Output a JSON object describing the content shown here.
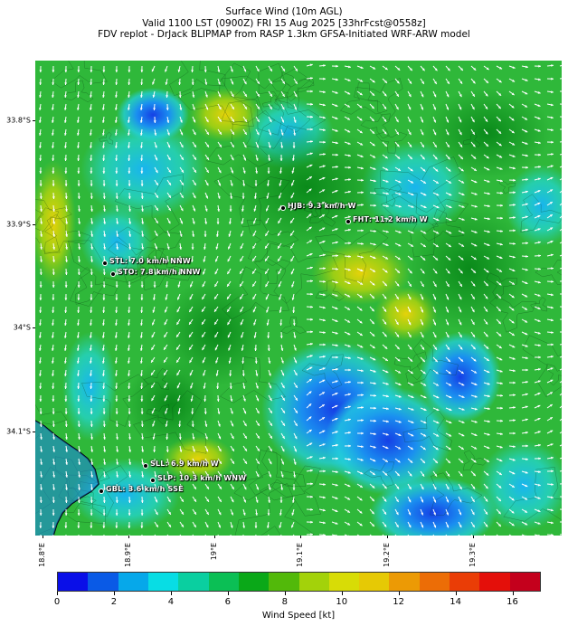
{
  "title": {
    "line1": "Surface Wind (10m AGL)",
    "line2": "Valid 1100 LST (0900Z) FRI 15 Aug 2025 [33hrFcst@0558z]",
    "line3": "FDV replot - DrJack BLIPMAP from RASP 1.3km GFSA-Initiated WRF-ARW model"
  },
  "latitude_labels": [
    "33.8°S",
    "33.9°S",
    "34°S",
    "34.1°S"
  ],
  "longitude_labels": [
    "18.8°E",
    "18.9°E",
    "19°E",
    "19.1°E",
    "19.2°E",
    "19.3°E"
  ],
  "stations": [
    {
      "id": "HJB",
      "label": "HJB: 9.3 km/h W"
    },
    {
      "id": "FHT",
      "label": "FHT: 11.2 km/h W"
    },
    {
      "id": "STL",
      "label": "STL: 7.0 km/h NNW"
    },
    {
      "id": "STO",
      "label": "STO: 7.8 km/h NNW"
    },
    {
      "id": "SLL",
      "label": "SLL: 6.9 km/h W"
    },
    {
      "id": "SLP",
      "label": "SLP: 10.3 km/h WNW"
    },
    {
      "id": "GBL",
      "label": "GBL: 3.6 km/h SSE"
    }
  ],
  "colorbar": {
    "title": "Wind Speed [kt]",
    "tick_labels": [
      "0",
      "2",
      "4",
      "6",
      "8",
      "10",
      "12",
      "14",
      "16"
    ],
    "colors": [
      "#0a0fe8",
      "#0a5ae6",
      "#06a8ea",
      "#08dde4",
      "#0acfa0",
      "#0bbf55",
      "#0aa818",
      "#52b90a",
      "#a3d20a",
      "#d8dc06",
      "#e6c905",
      "#ec9a05",
      "#ec6d06",
      "#ea3d06",
      "#e40f0a",
      "#c4001c"
    ]
  },
  "map": {
    "dominant_color": "#2fb83a",
    "water_color": "#3399ff",
    "coastline_color": "#000000",
    "arrow_color": "#ffffff"
  }
}
